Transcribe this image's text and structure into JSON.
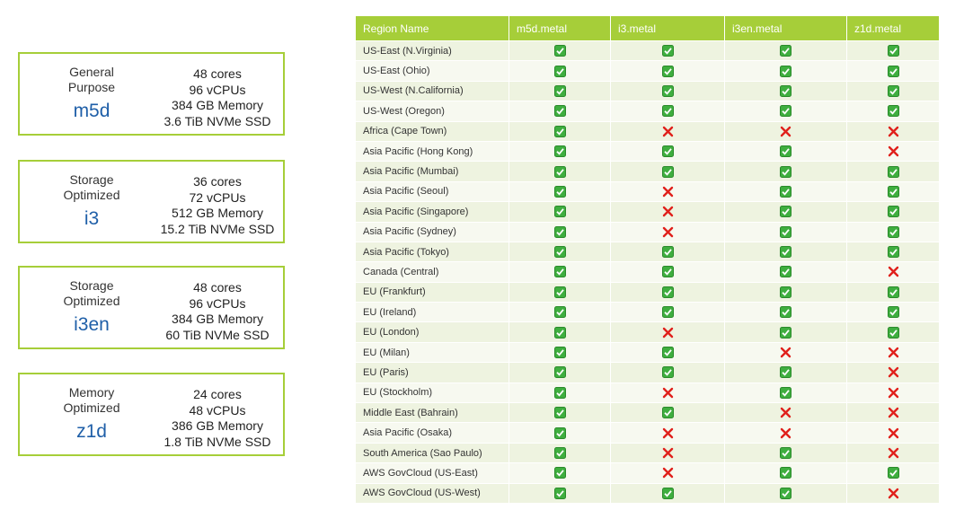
{
  "cards": [
    {
      "category": "General Purpose",
      "name": "m5d",
      "specs": [
        "48 cores",
        "96 vCPUs",
        "384 GB Memory",
        "3.6 TiB NVMe SSD"
      ]
    },
    {
      "category": "Storage Optimized",
      "name": "i3",
      "specs": [
        "36 cores",
        "72 vCPUs",
        "512 GB Memory",
        "15.2 TiB NVMe SSD"
      ]
    },
    {
      "category": "Storage Optimized",
      "name": "i3en",
      "specs": [
        "48 cores",
        "96 vCPUs",
        "384 GB Memory",
        "60 TiB NVMe SSD"
      ]
    },
    {
      "category": "Memory Optimized",
      "name": "z1d",
      "specs": [
        "24 cores",
        "48 vCPUs",
        "386 GB Memory",
        "1.8 TiB NVMe SSD"
      ]
    }
  ],
  "table": {
    "header": [
      "Region Name",
      "m5d.metal",
      "i3.metal",
      "i3en.metal",
      "z1d.metal"
    ],
    "rows": [
      {
        "region": "US-East (N.Virginia)",
        "available": [
          true,
          true,
          true,
          true
        ]
      },
      {
        "region": "US-East (Ohio)",
        "available": [
          true,
          true,
          true,
          true
        ]
      },
      {
        "region": "US-West (N.California)",
        "available": [
          true,
          true,
          true,
          true
        ]
      },
      {
        "region": "US-West (Oregon)",
        "available": [
          true,
          true,
          true,
          true
        ]
      },
      {
        "region": "Africa (Cape Town)",
        "available": [
          true,
          false,
          false,
          false
        ]
      },
      {
        "region": "Asia Pacific (Hong Kong)",
        "available": [
          true,
          true,
          true,
          false
        ]
      },
      {
        "region": "Asia Pacific (Mumbai)",
        "available": [
          true,
          true,
          true,
          true
        ]
      },
      {
        "region": "Asia Pacific (Seoul)",
        "available": [
          true,
          false,
          true,
          true
        ]
      },
      {
        "region": "Asia Pacific (Singapore)",
        "available": [
          true,
          false,
          true,
          true
        ]
      },
      {
        "region": "Asia Pacific (Sydney)",
        "available": [
          true,
          false,
          true,
          true
        ]
      },
      {
        "region": "Asia Pacific (Tokyo)",
        "available": [
          true,
          true,
          true,
          true
        ]
      },
      {
        "region": "Canada (Central)",
        "available": [
          true,
          true,
          true,
          false
        ]
      },
      {
        "region": "EU (Frankfurt)",
        "available": [
          true,
          true,
          true,
          true
        ]
      },
      {
        "region": "EU (Ireland)",
        "available": [
          true,
          true,
          true,
          true
        ]
      },
      {
        "region": "EU (London)",
        "available": [
          true,
          false,
          true,
          true
        ]
      },
      {
        "region": "EU (Milan)",
        "available": [
          true,
          true,
          false,
          false
        ]
      },
      {
        "region": "EU (Paris)",
        "available": [
          true,
          true,
          true,
          false
        ]
      },
      {
        "region": "EU (Stockholm)",
        "available": [
          true,
          false,
          true,
          false
        ]
      },
      {
        "region": "Middle East (Bahrain)",
        "available": [
          true,
          true,
          false,
          false
        ]
      },
      {
        "region": "Asia Pacific (Osaka)",
        "available": [
          true,
          false,
          false,
          false
        ]
      },
      {
        "region": "South America (Sao Paulo)",
        "available": [
          true,
          false,
          true,
          false
        ]
      },
      {
        "region": "AWS GovCloud (US-East)",
        "available": [
          true,
          false,
          true,
          true
        ]
      },
      {
        "region": "AWS GovCloud (US-West)",
        "available": [
          true,
          true,
          true,
          false
        ]
      }
    ]
  }
}
